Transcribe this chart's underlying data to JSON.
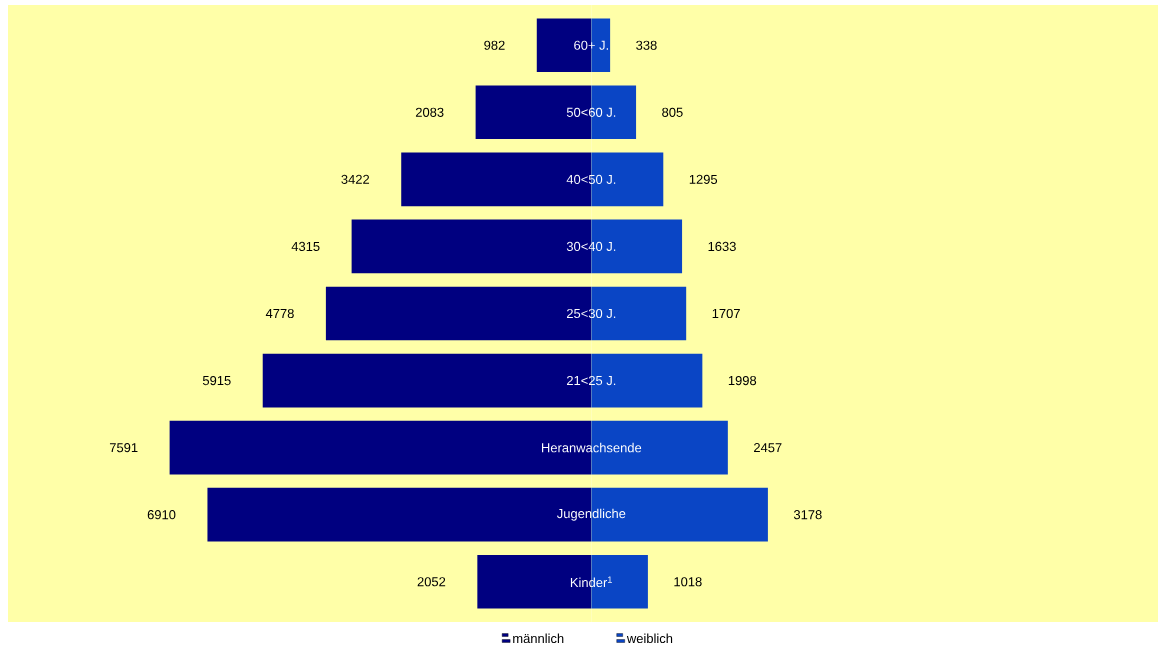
{
  "chart_data": [
    {
      "type": "bar",
      "orientation": "horizontal",
      "categories": [
        "60+ J.",
        "50<60 J.",
        "40<50 J.",
        "30<40 J.",
        "25<30 J.",
        "21<25 J.",
        "Heranwachsende",
        "Jugendliche",
        "Kinder$^{1}$"
      ],
      "series": [
        {
          "name": "männlich",
          "color": "#000080",
          "values": [
            982,
            2083,
            3422,
            4315,
            4778,
            5915,
            7591,
            6910,
            2052
          ]
        }
      ],
      "data_labels": true,
      "xlim": [
        10500,
        0
      ],
      "legend": "bottom right"
    },
    {
      "type": "bar",
      "orientation": "horizontal",
      "categories": [
        null,
        null,
        null,
        null,
        null,
        null,
        null,
        null,
        null
      ],
      "series": [
        {
          "name": "weiblich",
          "color": "#0a45c5",
          "values": [
            338,
            805,
            1295,
            1633,
            1707,
            1998,
            2457,
            3178,
            1018
          ]
        }
      ],
      "data_labels": true,
      "xlim": [
        0,
        10200
      ],
      "legend": "bottom left"
    }
  ]
}
